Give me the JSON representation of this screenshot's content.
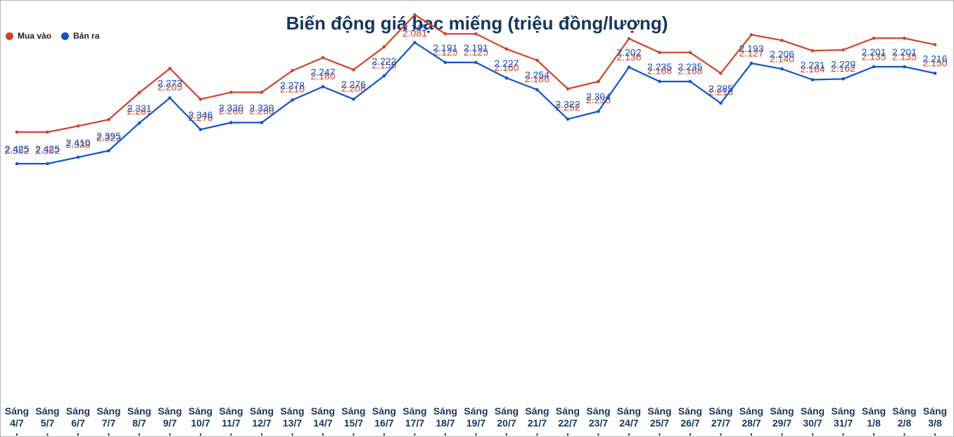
{
  "chart_data": {
    "type": "line",
    "title": "Biến động giá bạc miếng (triệu đồng/lượng)",
    "legend_position": "top-left",
    "grid": false,
    "categories": [
      "Sáng 4/7",
      "Sáng 5/7",
      "Sáng 6/7",
      "Sáng 7/7",
      "Sáng 8/7",
      "Sáng 9/7",
      "Sáng 10/7",
      "Sáng 11/7",
      "Sáng 12/7",
      "Sáng 13/7",
      "Sáng 14/7",
      "Sáng 15/7",
      "Sáng 16/7",
      "Sáng 17/7",
      "Sáng 18/7",
      "Sáng 19/7",
      "Sáng 20/7",
      "Sáng 21/7",
      "Sáng 22/7",
      "Sáng 23/7",
      "Sáng 24/7",
      "Sáng 25/7",
      "Sáng 26/7",
      "Sáng 27/7",
      "Sáng 28/7",
      "Sáng 29/7",
      "Sáng 30/7",
      "Sáng 31/7",
      "Sáng 1/8",
      "Sáng 2/8",
      "Sáng 3/8"
    ],
    "series": [
      {
        "name": "Mua vào",
        "color": "#d2432b",
        "values": [
          2.352,
          2.352,
          2.338,
          2.323,
          2.261,
          2.205,
          2.276,
          2.26,
          2.26,
          2.21,
          2.18,
          2.208,
          2.155,
          2.081,
          2.125,
          2.125,
          2.16,
          2.186,
          2.252,
          2.235,
          2.136,
          2.168,
          2.168,
          2.216,
          2.127,
          2.14,
          2.164,
          2.162,
          2.135,
          2.135,
          2.15
        ],
        "labels": [
          "2.352",
          "2.352",
          "2.338",
          "2.323",
          "2.261",
          "2.205",
          "2.276",
          "2.260",
          "2.260",
          "2.210",
          "2.180",
          "2.208",
          "2.155",
          "2.081",
          "2.125",
          "2.125",
          "2.160",
          "2.186",
          "2.252",
          "2.235",
          "2.136",
          "2.168",
          "2.168",
          "2.216",
          "2.127",
          "2.140",
          "2.164",
          "2.162",
          "2.135",
          "2.135",
          "2.150"
        ]
      },
      {
        "name": "Bán ra",
        "color": "#1155cc",
        "values": [
          2.425,
          2.425,
          2.41,
          2.395,
          2.331,
          2.273,
          2.346,
          2.33,
          2.33,
          2.278,
          2.247,
          2.276,
          2.222,
          2.145,
          2.191,
          2.191,
          2.227,
          2.254,
          2.322,
          2.304,
          2.202,
          2.235,
          2.235,
          2.285,
          2.193,
          2.206,
          2.231,
          2.229,
          2.201,
          2.201,
          2.216
        ],
        "labels": [
          "2.425",
          "2.425",
          "2.410",
          "2.395",
          "2.331",
          "2.273",
          "2.346",
          "2.330",
          "2.330",
          "2.278",
          "2.247",
          "2.276",
          "2.222",
          "2.145",
          "2.191",
          "2.191",
          "2.227",
          "2.254",
          "2.322",
          "2.304",
          "2.202",
          "2.235",
          "2.235",
          "2.285",
          "2.193",
          "2.206",
          "2.231",
          "2.229",
          "2.201",
          "2.201",
          "2.216"
        ]
      }
    ]
  }
}
